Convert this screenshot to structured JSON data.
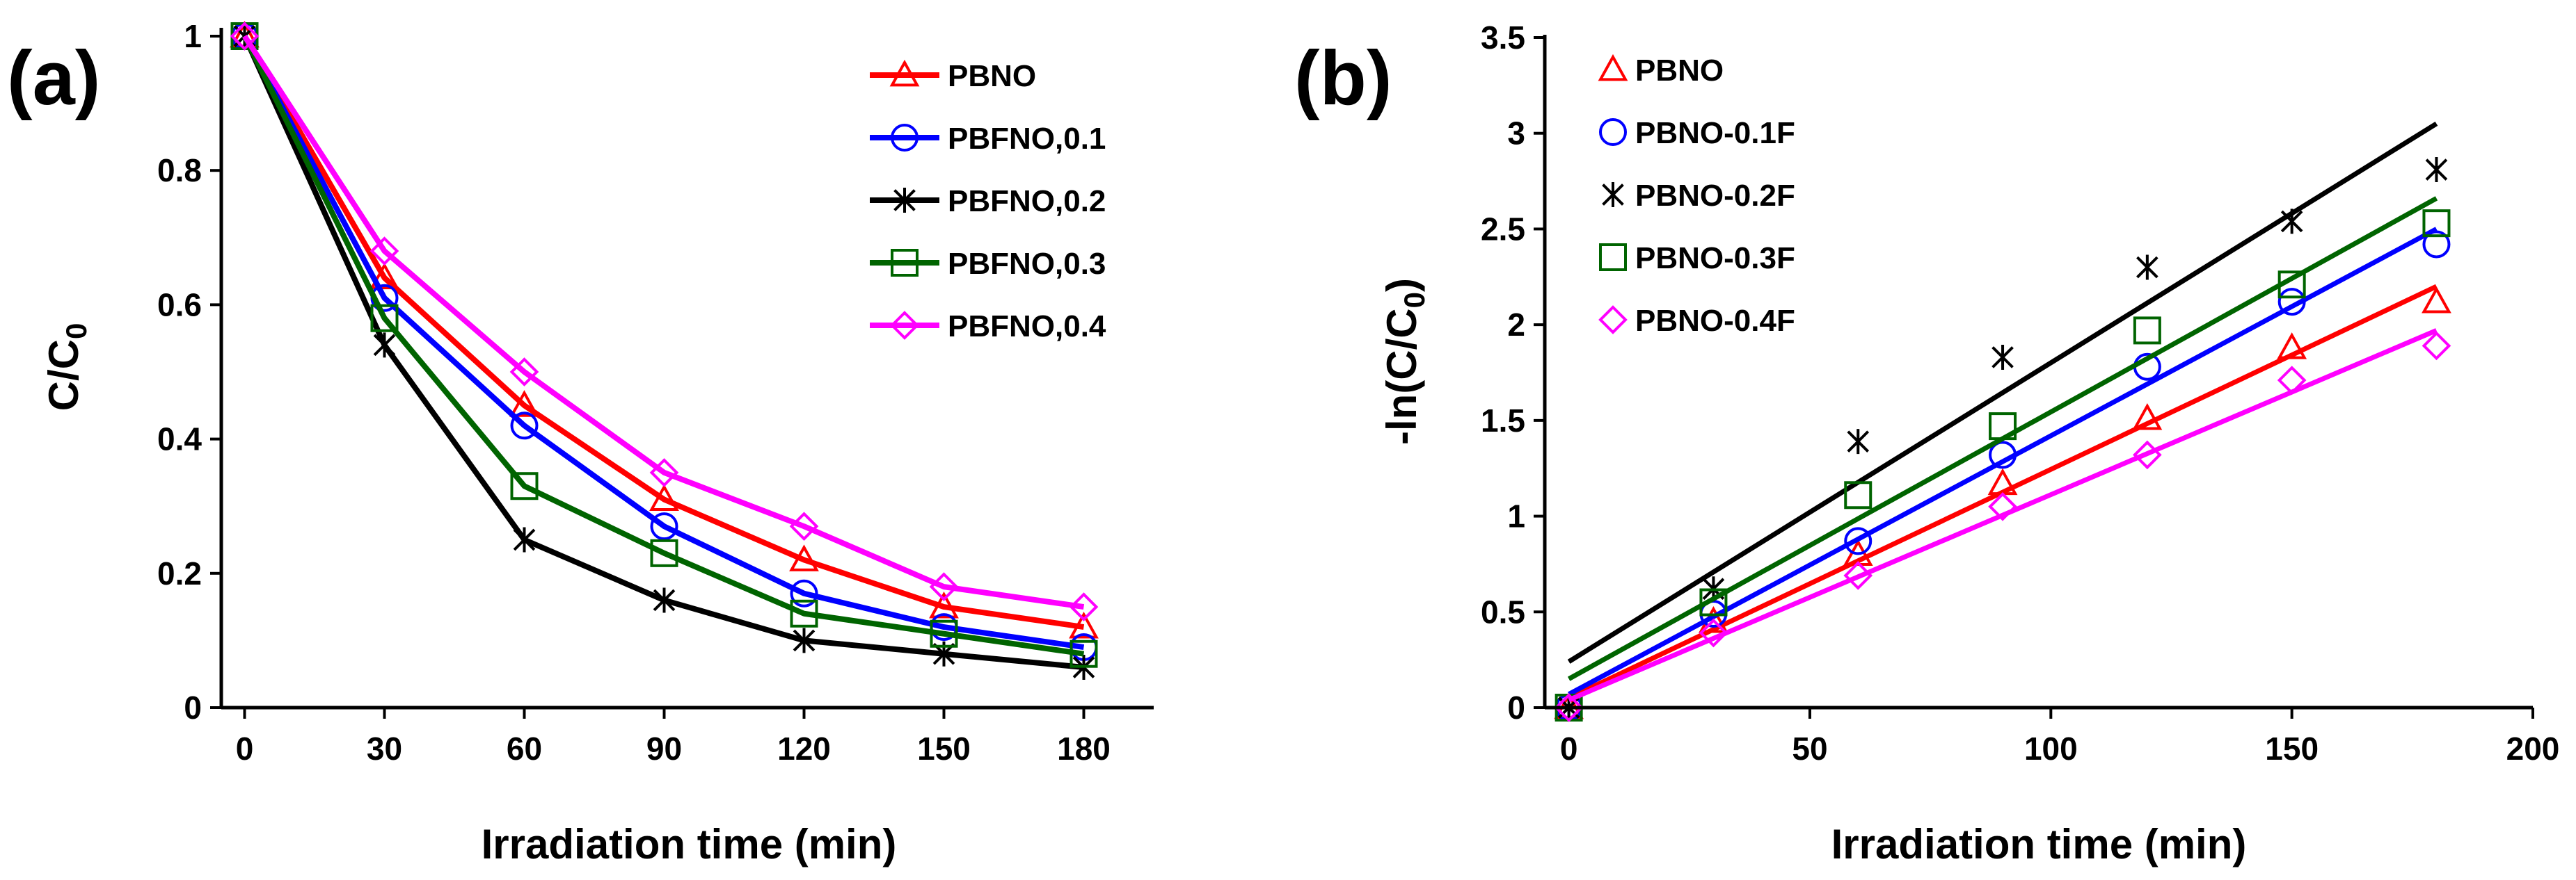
{
  "chart_data": [
    {
      "panel_label": "(a)",
      "type": "line",
      "xlabel": "Irradiation time (min)",
      "ylabel_main": "C/C",
      "ylabel_sub": "0",
      "xlim": [
        -5,
        195
      ],
      "ylim": [
        0,
        1
      ],
      "xticks": [
        0,
        30,
        60,
        90,
        120,
        150,
        180
      ],
      "xtick_labels": [
        "0",
        "30",
        "60",
        "90",
        "120",
        "150",
        "180"
      ],
      "yticks": [
        0,
        0.2,
        0.4,
        0.6,
        0.8,
        1
      ],
      "ytick_labels": [
        "0",
        "0.2",
        "0.4",
        "0.6",
        "0.8",
        "1"
      ],
      "grid": false,
      "legend_position": "top-right",
      "x": [
        0,
        30,
        60,
        90,
        120,
        150,
        180
      ],
      "series": [
        {
          "name": "PBNO",
          "marker": "triangle",
          "color": "#ff0000",
          "values": [
            1,
            0.64,
            0.45,
            0.31,
            0.22,
            0.15,
            0.12
          ]
        },
        {
          "name": "PBFNO,0.1",
          "marker": "circle",
          "color": "#0000ff",
          "values": [
            1,
            0.61,
            0.42,
            0.27,
            0.17,
            0.12,
            0.09
          ]
        },
        {
          "name": "PBFNO,0.2",
          "marker": "star",
          "color": "#000000",
          "values": [
            1,
            0.54,
            0.25,
            0.16,
            0.1,
            0.08,
            0.06
          ]
        },
        {
          "name": "PBFNO,0.3",
          "marker": "square",
          "color": "#006400",
          "values": [
            1,
            0.58,
            0.33,
            0.23,
            0.14,
            0.11,
            0.08
          ]
        },
        {
          "name": "PBFNO,0.4",
          "marker": "diamond",
          "color": "#ff00ff",
          "values": [
            1,
            0.68,
            0.5,
            0.35,
            0.27,
            0.18,
            0.15
          ]
        }
      ]
    },
    {
      "panel_label": "(b)",
      "type": "scatter",
      "xlabel": "Irradiation time (min)",
      "ylabel_main": "-ln(C/C",
      "ylabel_sub": "0",
      "ylabel_end": ")",
      "xlim": [
        -5,
        200
      ],
      "ylim": [
        0,
        3.5
      ],
      "xticks": [
        0,
        50,
        100,
        150,
        200
      ],
      "xtick_labels": [
        "0",
        "50",
        "100",
        "150",
        "200"
      ],
      "yticks": [
        0,
        0.5,
        1,
        1.5,
        2,
        2.5,
        3,
        3.5
      ],
      "ytick_labels": [
        "0",
        "0.5",
        "1",
        "1.5",
        "2",
        "2.5",
        "3",
        "3.5"
      ],
      "grid": false,
      "legend_position": "top-left",
      "x": [
        0,
        30,
        60,
        90,
        120,
        150,
        180
      ],
      "series": [
        {
          "name": "PBNO",
          "marker": "triangle",
          "color": "#ff0000",
          "values": [
            0,
            0.45,
            0.8,
            1.17,
            1.51,
            1.88,
            2.12
          ],
          "fit": [
            0.05,
            2.2
          ]
        },
        {
          "name": "PBNO-0.1F",
          "marker": "circle",
          "color": "#0000ff",
          "values": [
            0,
            0.49,
            0.87,
            1.32,
            1.78,
            2.12,
            2.42
          ],
          "fit": [
            0.07,
            2.5
          ]
        },
        {
          "name": "PBNO-0.2F",
          "marker": "star",
          "color": "#000000",
          "values": [
            0,
            0.62,
            1.39,
            1.83,
            2.3,
            2.54,
            2.81
          ],
          "fit": [
            0.24,
            3.05
          ]
        },
        {
          "name": "PBNO-0.3F",
          "marker": "square",
          "color": "#006400",
          "values": [
            0,
            0.55,
            1.11,
            1.47,
            1.97,
            2.21,
            2.53
          ],
          "fit": [
            0.15,
            2.66
          ]
        },
        {
          "name": "PBNO-0.4F",
          "marker": "diamond",
          "color": "#ff00ff",
          "values": [
            0,
            0.39,
            0.69,
            1.05,
            1.32,
            1.71,
            1.89
          ],
          "fit": [
            0.04,
            1.97
          ]
        }
      ]
    }
  ]
}
